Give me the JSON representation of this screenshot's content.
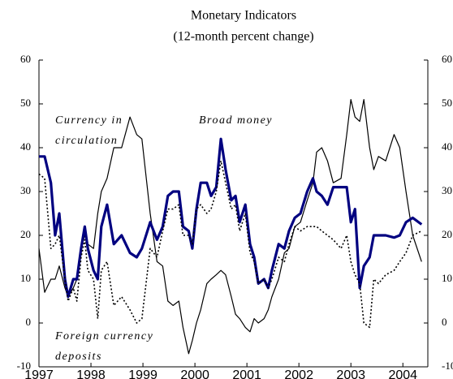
{
  "chart_data": {
    "type": "line",
    "title": "Monetary Indicators",
    "subtitle": "(12-month percent change)",
    "x": [
      1997.0,
      1997.11,
      1997.23,
      1997.31,
      1997.39,
      1997.5,
      1997.56,
      1997.66,
      1997.73,
      1997.81,
      1997.88,
      1997.94,
      1998.05,
      1998.13,
      1998.2,
      1998.31,
      1998.44,
      1998.59,
      1998.75,
      1998.88,
      1998.98,
      1999.14,
      1999.27,
      1999.38,
      1999.48,
      1999.58,
      1999.69,
      1999.77,
      1999.88,
      1999.95,
      2000.03,
      2000.11,
      2000.23,
      2000.31,
      2000.41,
      2000.5,
      2000.59,
      2000.7,
      2000.78,
      2000.86,
      2000.97,
      2001.06,
      2001.14,
      2001.22,
      2001.33,
      2001.41,
      2001.48,
      2001.61,
      2001.72,
      2001.81,
      2001.92,
      2002.03,
      2002.16,
      2002.27,
      2002.34,
      2002.44,
      2002.55,
      2002.66,
      2002.81,
      2002.92,
      2003.0,
      2003.08,
      2003.17,
      2003.25,
      2003.36,
      2003.44,
      2003.53,
      2003.67,
      2003.83,
      2003.94,
      2004.06,
      2004.19,
      2004.36
    ],
    "xlim": [
      1997,
      2004.48
    ],
    "xticks": [
      1997,
      1998,
      1999,
      2000,
      2001,
      2002,
      2003,
      2004
    ],
    "ylim": [
      -10,
      60
    ],
    "yticks": [
      -10,
      0,
      10,
      20,
      30,
      40,
      50,
      60
    ],
    "y2lim": [
      -10,
      60
    ],
    "y2ticks": [
      -10,
      0,
      10,
      20,
      30,
      40,
      50,
      60
    ],
    "series": [
      {
        "name": "Currency in circulation",
        "color": "#000000",
        "style": "solid",
        "values": [
          17,
          7,
          10,
          10,
          13,
          8,
          6,
          8,
          10,
          17,
          20,
          18,
          17,
          25,
          30,
          33,
          40,
          40,
          47,
          43,
          42,
          25,
          14,
          13,
          5,
          4,
          5,
          -1,
          -7,
          -4,
          0,
          3,
          9,
          10,
          11,
          12,
          11,
          6,
          2,
          1,
          -1,
          -2,
          1,
          0,
          1,
          3,
          6,
          10,
          16,
          17,
          22,
          23,
          28,
          32,
          39,
          40,
          37,
          32,
          33,
          43,
          51,
          47,
          46,
          51,
          40,
          35,
          38,
          37,
          43,
          40,
          30,
          20,
          14
        ]
      },
      {
        "name": "Broad money",
        "color": "#000080",
        "style": "thick",
        "values": [
          38,
          38,
          32,
          20,
          25,
          10,
          6,
          10,
          10,
          17,
          22,
          17,
          12,
          10,
          22,
          27,
          18,
          20,
          16,
          15,
          17,
          23,
          19,
          22,
          29,
          30,
          30,
          22,
          21,
          17,
          26,
          32,
          32,
          29,
          31,
          42,
          35,
          28,
          29,
          23,
          27,
          18,
          15,
          9,
          10,
          8,
          12,
          18,
          17,
          21,
          24,
          25,
          30,
          33,
          30,
          29,
          27,
          31,
          31,
          31,
          23,
          26,
          8,
          13,
          15,
          20,
          20,
          20,
          19.5,
          20,
          23,
          24,
          22.5
        ]
      },
      {
        "name": "Foreign currency deposits",
        "color": "#000000",
        "style": "dotted",
        "values": [
          34,
          33,
          17,
          18,
          20,
          10,
          5,
          8,
          5,
          15,
          19,
          12,
          10,
          1,
          12,
          14,
          4,
          6,
          3,
          0,
          1,
          17,
          15,
          21,
          26,
          26,
          27,
          20,
          20,
          18,
          26,
          27,
          25,
          26,
          30,
          37,
          32,
          26,
          27,
          21,
          25,
          16,
          14,
          9,
          10,
          8,
          10,
          15,
          14,
          18,
          22,
          21,
          22,
          22,
          22,
          21,
          20,
          19,
          17,
          20,
          14,
          11,
          9,
          0,
          -1,
          10,
          9,
          11,
          12,
          14,
          16,
          20,
          21
        ]
      }
    ]
  }
}
